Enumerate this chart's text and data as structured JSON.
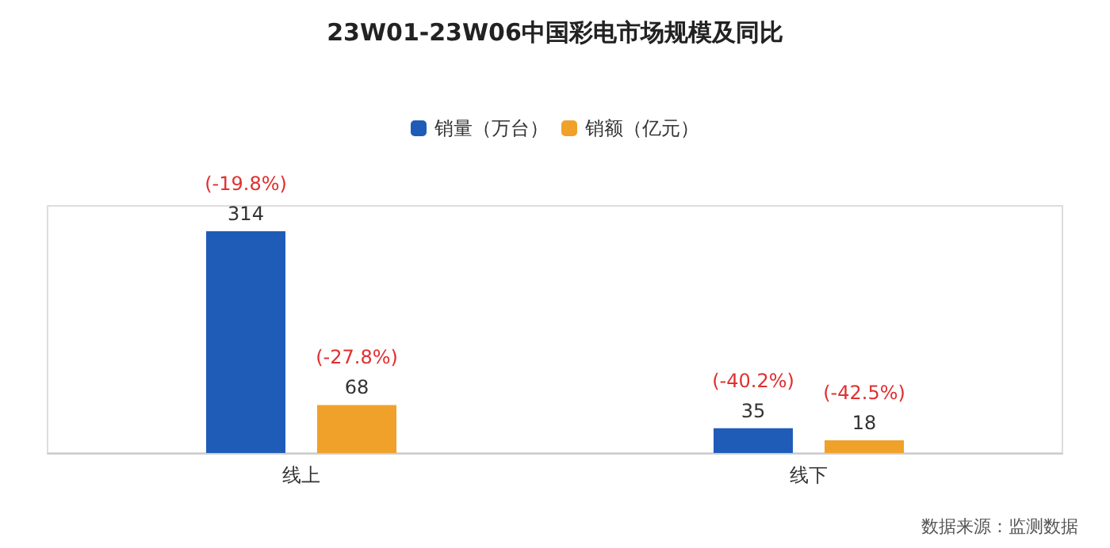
{
  "chart_data": {
    "type": "bar",
    "title": "23W01-23W06中国彩电市场规模及同比",
    "categories": [
      "线上",
      "线下"
    ],
    "series": [
      {
        "name": "销量（万台）",
        "color": "#1f5cb8",
        "values": [
          314,
          35
        ]
      },
      {
        "name": "销额（亿元）",
        "color": "#f0a12a",
        "values": [
          68,
          18
        ]
      }
    ],
    "data_labels": true,
    "legend": "top",
    "annotations": [
      "(-19.8%)",
      "(-27.8%)",
      "(-40.2%)",
      "(-42.5%)",
      "数据来源：监测数据"
    ]
  }
}
